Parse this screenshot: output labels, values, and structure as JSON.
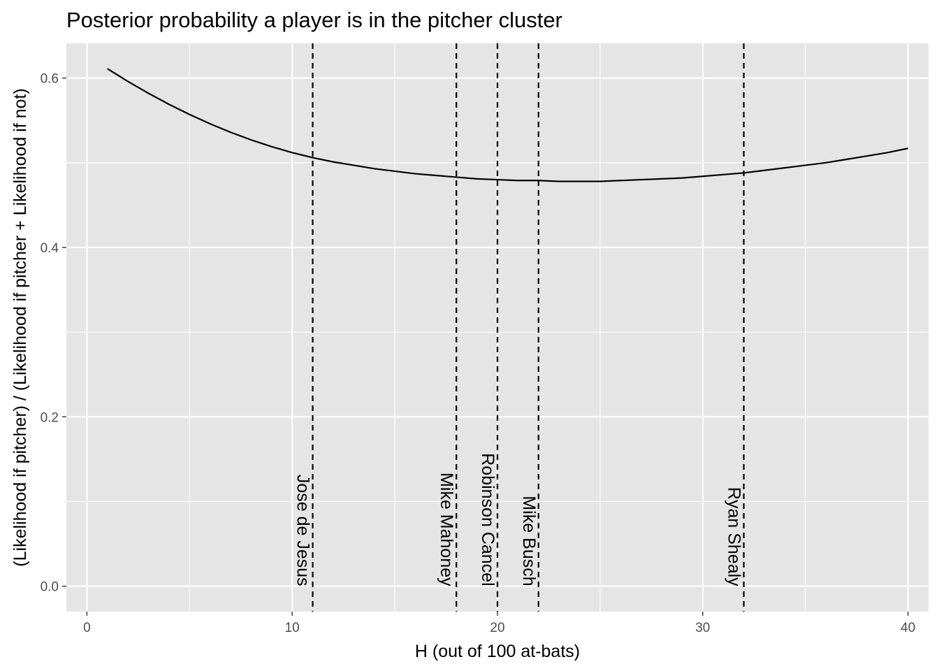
{
  "chart_data": {
    "type": "line",
    "title": "Posterior probability a player is in the pitcher cluster",
    "xlabel": "H (out of 100 at-bats)",
    "ylabel": "(Likelihood if pitcher) / (Likelihood if pitcher + Likelihood if not)",
    "xlim": [
      -1,
      41
    ],
    "ylim": [
      -0.03,
      0.641
    ],
    "x_ticks": [
      0,
      10,
      20,
      30,
      40
    ],
    "x_tick_labels": [
      "0",
      "10",
      "20",
      "30",
      "40"
    ],
    "y_ticks": [
      0.0,
      0.2,
      0.4,
      0.6
    ],
    "y_tick_labels": [
      "0.0",
      "0.2",
      "0.4",
      "0.6"
    ],
    "grid": true,
    "background": "#e5e5e5",
    "grid_color": "#ffffff",
    "line_color": "#000000",
    "series": [
      {
        "x": [
          1,
          2,
          3,
          4,
          5,
          6,
          7,
          8,
          9,
          10,
          11,
          12,
          13,
          14,
          15,
          16,
          17,
          18,
          19,
          20,
          21,
          22,
          23,
          24,
          25,
          26,
          27,
          28,
          29,
          30,
          31,
          32,
          33,
          34,
          35,
          36,
          37,
          38,
          39,
          40
        ],
        "values": [
          0.611,
          0.596,
          0.582,
          0.569,
          0.557,
          0.546,
          0.536,
          0.527,
          0.519,
          0.512,
          0.506,
          0.501,
          0.497,
          0.493,
          0.49,
          0.487,
          0.485,
          0.483,
          0.481,
          0.48,
          0.479,
          0.479,
          0.478,
          0.478,
          0.478,
          0.479,
          0.48,
          0.481,
          0.482,
          0.484,
          0.486,
          0.488,
          0.491,
          0.494,
          0.497,
          0.5,
          0.504,
          0.508,
          0.512,
          0.517
        ]
      }
    ],
    "annotations": [
      {
        "x": 11,
        "label": "Jose de Jesus"
      },
      {
        "x": 18,
        "label": "Mike Mahoney"
      },
      {
        "x": 20,
        "label": "Robinson Cancel"
      },
      {
        "x": 22,
        "label": "Mike Busch"
      },
      {
        "x": 32,
        "label": "Ryan Shealy"
      }
    ]
  }
}
